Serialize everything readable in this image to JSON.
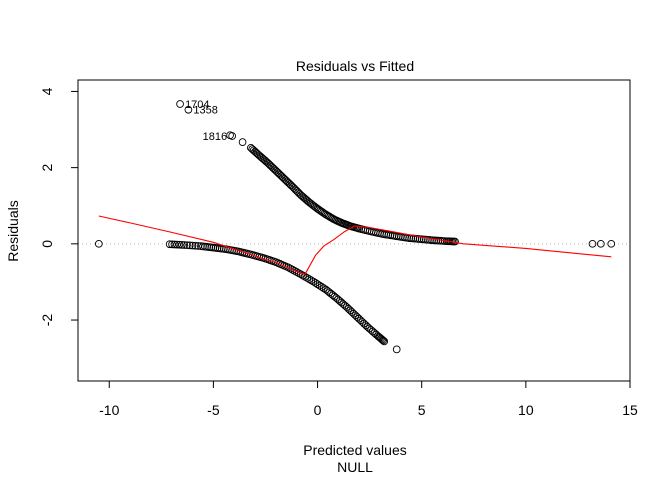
{
  "chart_data": {
    "type": "scatter",
    "title": "Residuals vs Fitted",
    "xlabel": "Predicted values",
    "xsublabel": "NULL",
    "ylabel": "Residuals",
    "xlim": [
      -11.5,
      15.0
    ],
    "ylim": [
      -3.6,
      4.3
    ],
    "xticks": [
      -10,
      -5,
      0,
      5,
      10,
      15
    ],
    "yticks": [
      -2,
      0,
      2,
      4
    ],
    "grid": false,
    "reference_line": {
      "y": 0,
      "style": "dotted",
      "color": "#b3b3b3"
    },
    "point_style": {
      "shape": "open-circle",
      "color": "#000000"
    },
    "smooth_color": "#ff0000",
    "upper_branch": [
      {
        "x": -3.2,
        "y": 2.52
      },
      {
        "x": -2.8,
        "y": 2.32
      },
      {
        "x": -2.4,
        "y": 2.13
      },
      {
        "x": -2.0,
        "y": 1.92
      },
      {
        "x": -1.6,
        "y": 1.71
      },
      {
        "x": -1.2,
        "y": 1.5
      },
      {
        "x": -0.8,
        "y": 1.28
      },
      {
        "x": -0.4,
        "y": 1.09
      },
      {
        "x": 0.0,
        "y": 0.92
      },
      {
        "x": 0.4,
        "y": 0.77
      },
      {
        "x": 0.8,
        "y": 0.64
      },
      {
        "x": 1.2,
        "y": 0.54
      },
      {
        "x": 1.6,
        "y": 0.46
      },
      {
        "x": 2.0,
        "y": 0.4
      },
      {
        "x": 2.6,
        "y": 0.32
      },
      {
        "x": 3.2,
        "y": 0.25
      },
      {
        "x": 3.8,
        "y": 0.2
      },
      {
        "x": 4.4,
        "y": 0.15
      },
      {
        "x": 5.0,
        "y": 0.12
      },
      {
        "x": 5.6,
        "y": 0.09
      },
      {
        "x": 6.2,
        "y": 0.07
      },
      {
        "x": 6.6,
        "y": 0.06
      }
    ],
    "lower_branch": [
      {
        "x": -7.1,
        "y": -0.01
      },
      {
        "x": -6.4,
        "y": -0.03
      },
      {
        "x": -5.6,
        "y": -0.06
      },
      {
        "x": -5.0,
        "y": -0.1
      },
      {
        "x": -4.4,
        "y": -0.14
      },
      {
        "x": -3.8,
        "y": -0.2
      },
      {
        "x": -3.2,
        "y": -0.28
      },
      {
        "x": -2.6,
        "y": -0.37
      },
      {
        "x": -2.0,
        "y": -0.48
      },
      {
        "x": -1.4,
        "y": -0.62
      },
      {
        "x": -0.8,
        "y": -0.8
      },
      {
        "x": -0.2,
        "y": -0.99
      },
      {
        "x": 0.4,
        "y": -1.2
      },
      {
        "x": 0.9,
        "y": -1.42
      },
      {
        "x": 1.4,
        "y": -1.66
      },
      {
        "x": 1.9,
        "y": -1.92
      },
      {
        "x": 2.4,
        "y": -2.18
      },
      {
        "x": 2.9,
        "y": -2.42
      },
      {
        "x": 3.2,
        "y": -2.56
      }
    ],
    "extra_points": [
      {
        "x": -10.5,
        "y": 0.0
      },
      {
        "x": 3.8,
        "y": -2.77
      },
      {
        "x": 13.2,
        "y": 0.0
      },
      {
        "x": 13.6,
        "y": 0.0
      },
      {
        "x": 14.1,
        "y": 0.0
      },
      {
        "x": -4.2,
        "y": 2.85
      },
      {
        "x": -3.6,
        "y": 2.67
      }
    ],
    "labeled_points": [
      {
        "label": "1704",
        "x": -6.6,
        "y": 3.67
      },
      {
        "label": "1358",
        "x": -6.2,
        "y": 3.52
      },
      {
        "label": "1816",
        "x": -4.1,
        "y": 2.83
      }
    ],
    "smooth_line": [
      {
        "x": -10.5,
        "y": 0.73
      },
      {
        "x": -9.0,
        "y": 0.55
      },
      {
        "x": -7.0,
        "y": 0.3
      },
      {
        "x": -5.0,
        "y": 0.04
      },
      {
        "x": -4.0,
        "y": -0.14
      },
      {
        "x": -3.0,
        "y": -0.32
      },
      {
        "x": -2.0,
        "y": -0.49
      },
      {
        "x": -1.5,
        "y": -0.6
      },
      {
        "x": -1.0,
        "y": -0.73
      },
      {
        "x": -0.6,
        "y": -0.8
      },
      {
        "x": -0.4,
        "y": -0.6
      },
      {
        "x": -0.1,
        "y": -0.3
      },
      {
        "x": 0.3,
        "y": -0.06
      },
      {
        "x": 0.8,
        "y": 0.12
      },
      {
        "x": 1.3,
        "y": 0.32
      },
      {
        "x": 1.8,
        "y": 0.47
      },
      {
        "x": 2.5,
        "y": 0.43
      },
      {
        "x": 3.5,
        "y": 0.33
      },
      {
        "x": 5.0,
        "y": 0.18
      },
      {
        "x": 7.0,
        "y": 0.0
      },
      {
        "x": 10.0,
        "y": -0.12
      },
      {
        "x": 12.0,
        "y": -0.23
      },
      {
        "x": 14.1,
        "y": -0.34
      }
    ]
  }
}
